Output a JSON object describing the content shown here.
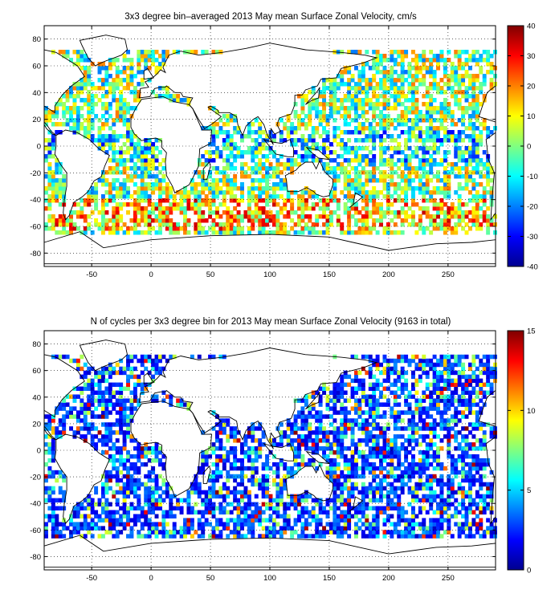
{
  "chart_data": [
    {
      "type": "heatmap",
      "title": "3x3 degree bin–averaged 2013 May mean Surface Zonal Velocity, cm/s",
      "xlim": [
        -90,
        290
      ],
      "ylim": [
        -90,
        90
      ],
      "x_ticks": [
        -50,
        0,
        50,
        100,
        150,
        200,
        250
      ],
      "x_tick_labels": [
        "-50",
        "0",
        "50",
        "100",
        "150",
        "200",
        "250"
      ],
      "y_ticks": [
        80,
        60,
        40,
        20,
        0,
        -20,
        -40,
        -60,
        -80
      ],
      "y_tick_labels": [
        "80",
        "60",
        "40",
        "20",
        "0",
        "-20",
        "-40",
        "-60",
        "-80"
      ],
      "grid": "dotted",
      "bin_size_deg": 3,
      "colorbar": {
        "colormap": "jet",
        "clim": [
          -40,
          40
        ],
        "ticks": [
          40,
          30,
          20,
          10,
          0,
          -10,
          -20,
          -30,
          -40
        ],
        "tick_labels": [
          "40",
          "30",
          "20",
          "10",
          "0",
          "-10",
          "-20",
          "-30",
          "-40"
        ]
      }
    },
    {
      "type": "heatmap",
      "title": "N of cycles per 3x3 degree bin for 2013 May mean Surface Zonal Velocity (9163 in total)",
      "xlim": [
        -90,
        290
      ],
      "ylim": [
        -90,
        90
      ],
      "x_ticks": [
        -50,
        0,
        50,
        100,
        150,
        200,
        250
      ],
      "x_tick_labels": [
        "-50",
        "0",
        "50",
        "100",
        "150",
        "200",
        "250"
      ],
      "y_ticks": [
        80,
        60,
        40,
        20,
        0,
        -20,
        -40,
        -60,
        -80
      ],
      "y_tick_labels": [
        "80",
        "60",
        "40",
        "20",
        "0",
        "-20",
        "-40",
        "-60",
        "-80"
      ],
      "grid": "dotted",
      "bin_size_deg": 3,
      "total_cycles": 9163,
      "colorbar": {
        "colormap": "jet",
        "clim": [
          0,
          15
        ],
        "ticks": [
          15,
          10,
          5,
          0
        ],
        "tick_labels": [
          "15",
          "10",
          "5",
          "0"
        ]
      }
    }
  ]
}
